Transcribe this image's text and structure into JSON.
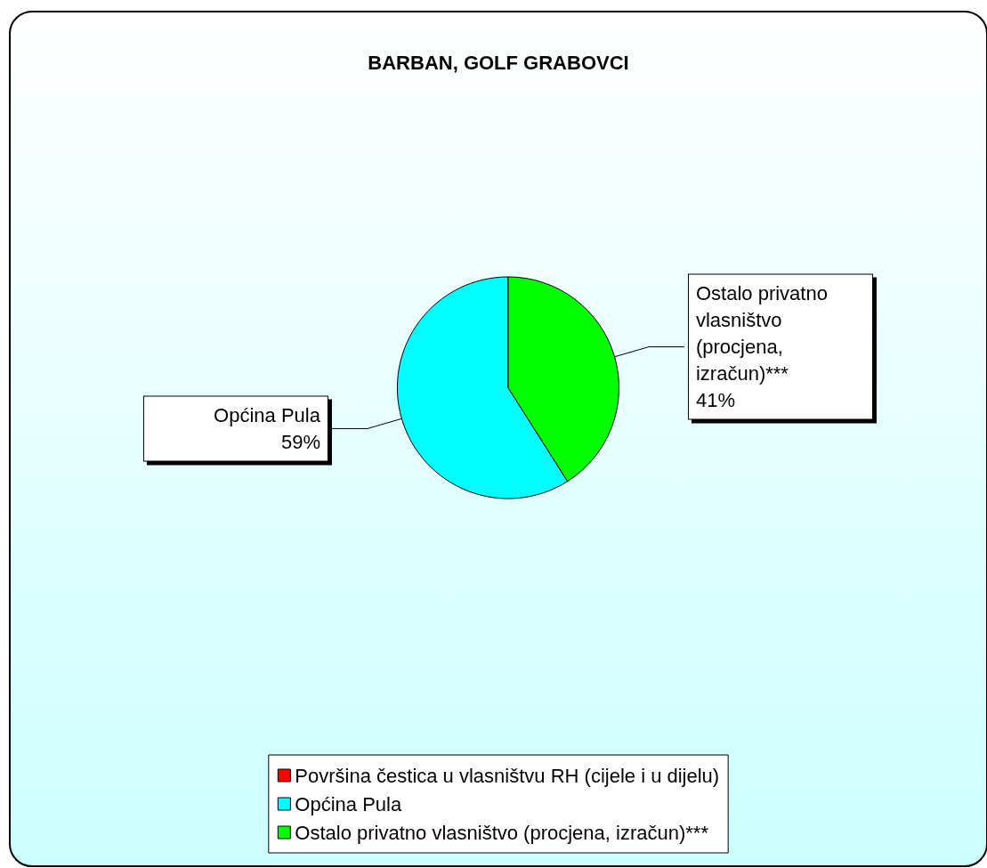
{
  "chart_data": {
    "type": "pie",
    "title": "BARBAN, GOLF GRABOVCI",
    "categories": [
      "Površina čestica u vlasništvu RH (cijele i u dijelu)",
      "Općina Pula",
      "Ostalo privatno vlasništvo (procjena, izračun)***"
    ],
    "values": [
      0,
      59,
      41
    ],
    "value_labels": [
      null,
      "59%",
      "41%"
    ],
    "colors": [
      "#ff0000",
      "#00ffff",
      "#00ff00"
    ],
    "legend": "bottom"
  }
}
